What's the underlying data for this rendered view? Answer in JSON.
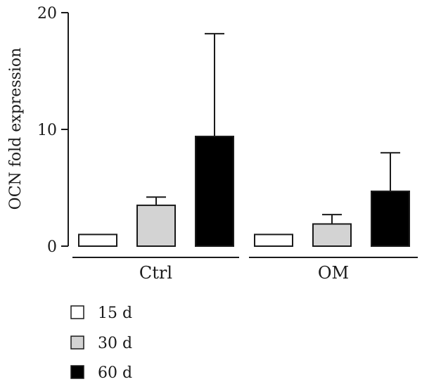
{
  "chart_data": {
    "type": "bar",
    "ylabel": "OCN fold expression",
    "ylim": [
      0,
      20
    ],
    "yticks": [
      0,
      10,
      20
    ],
    "groups": [
      "Ctrl",
      "OM"
    ],
    "series": [
      {
        "name": "15 d",
        "color": "#ffffff",
        "values": [
          1.0,
          1.0
        ],
        "errors": [
          0,
          0
        ]
      },
      {
        "name": "30 d",
        "color": "#d3d3d3",
        "values": [
          3.5,
          1.9
        ],
        "errors": [
          0.7,
          0.8
        ]
      },
      {
        "name": "60 d",
        "color": "#000000",
        "values": [
          9.4,
          4.7
        ],
        "errors": [
          8.8,
          3.3
        ]
      }
    ],
    "grid": false,
    "legend_position": "bottom-left"
  }
}
